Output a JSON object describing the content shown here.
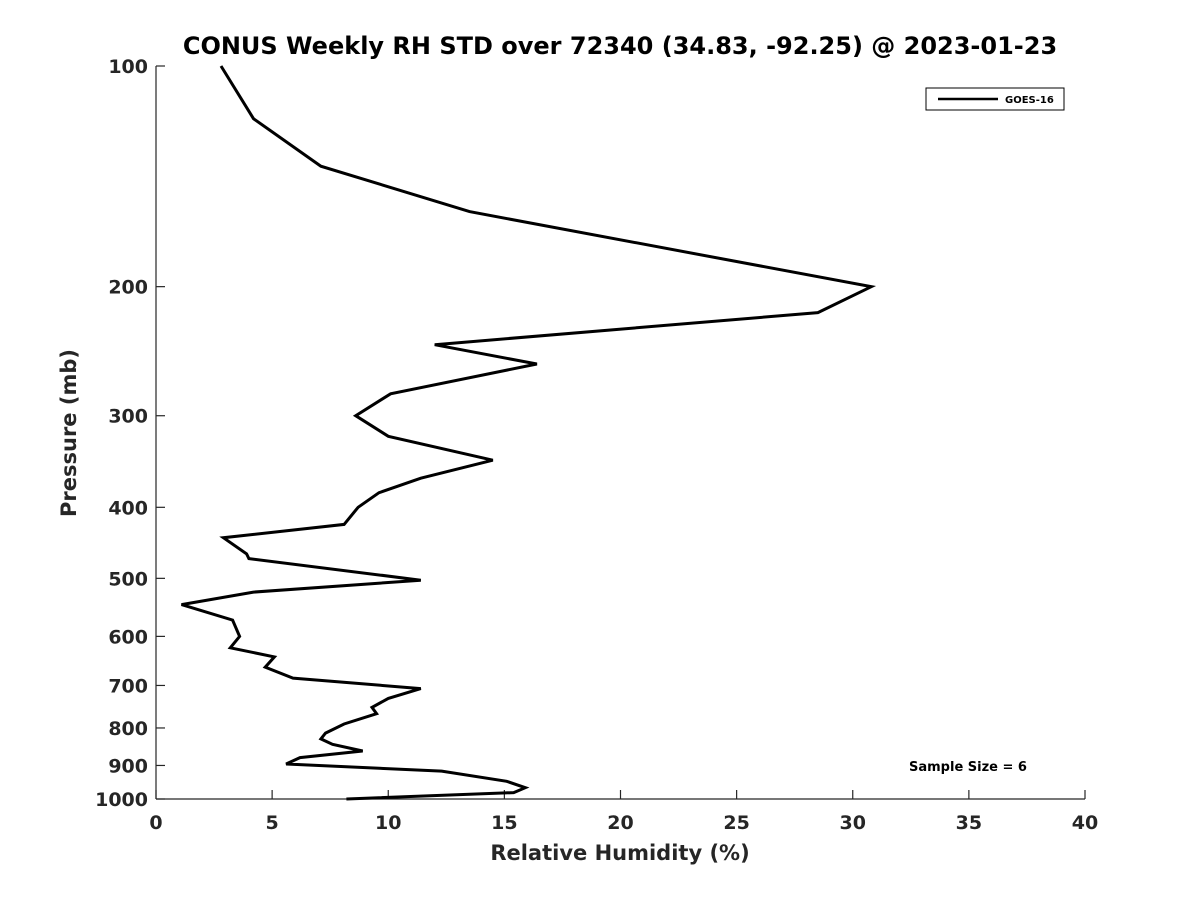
{
  "chart_data": {
    "type": "line",
    "title": "CONUS Weekly RH STD over 72340 (34.83, -92.25) @ 2023-01-23",
    "xlabel": "Relative Humidity (%)",
    "ylabel": "Pressure (mb)",
    "xlim": [
      0,
      40
    ],
    "ylim": [
      100,
      1000
    ],
    "y_scale": "log",
    "y_reversed": true,
    "x_ticks": [
      0,
      5,
      10,
      15,
      20,
      25,
      30,
      35,
      40
    ],
    "y_ticks": [
      100,
      200,
      300,
      400,
      500,
      600,
      700,
      800,
      900,
      1000
    ],
    "grid": false,
    "legend": {
      "position": "top-right",
      "entries": [
        "GOES-16"
      ]
    },
    "annotation": "Sample Size = 6",
    "series": [
      {
        "name": "GOES-16",
        "color": "#000000",
        "x": [
          2.8,
          4.2,
          7.1,
          13.5,
          30.8,
          28.5,
          12.0,
          16.4,
          10.1,
          8.6,
          10.0,
          14.5,
          11.4,
          9.6,
          8.7,
          8.1,
          2.9,
          3.9,
          4.0,
          11.4,
          4.2,
          1.1,
          3.3,
          3.6,
          3.2,
          5.1,
          4.7,
          5.9,
          11.4,
          10.0,
          9.3,
          9.5,
          8.1,
          7.3,
          7.1,
          7.6,
          8.9,
          6.2,
          5.6,
          12.3,
          15.1,
          15.9,
          15.4,
          8.2
        ],
        "y": [
          100,
          118,
          137,
          158,
          200,
          217,
          240,
          255,
          280,
          300,
          320,
          345,
          365,
          382,
          400,
          422,
          440,
          463,
          470,
          503,
          522,
          543,
          570,
          600,
          622,
          640,
          661,
          684,
          707,
          729,
          750,
          765,
          790,
          813,
          828,
          842,
          860,
          878,
          896,
          916,
          946,
          965,
          980,
          1000
        ]
      }
    ]
  }
}
